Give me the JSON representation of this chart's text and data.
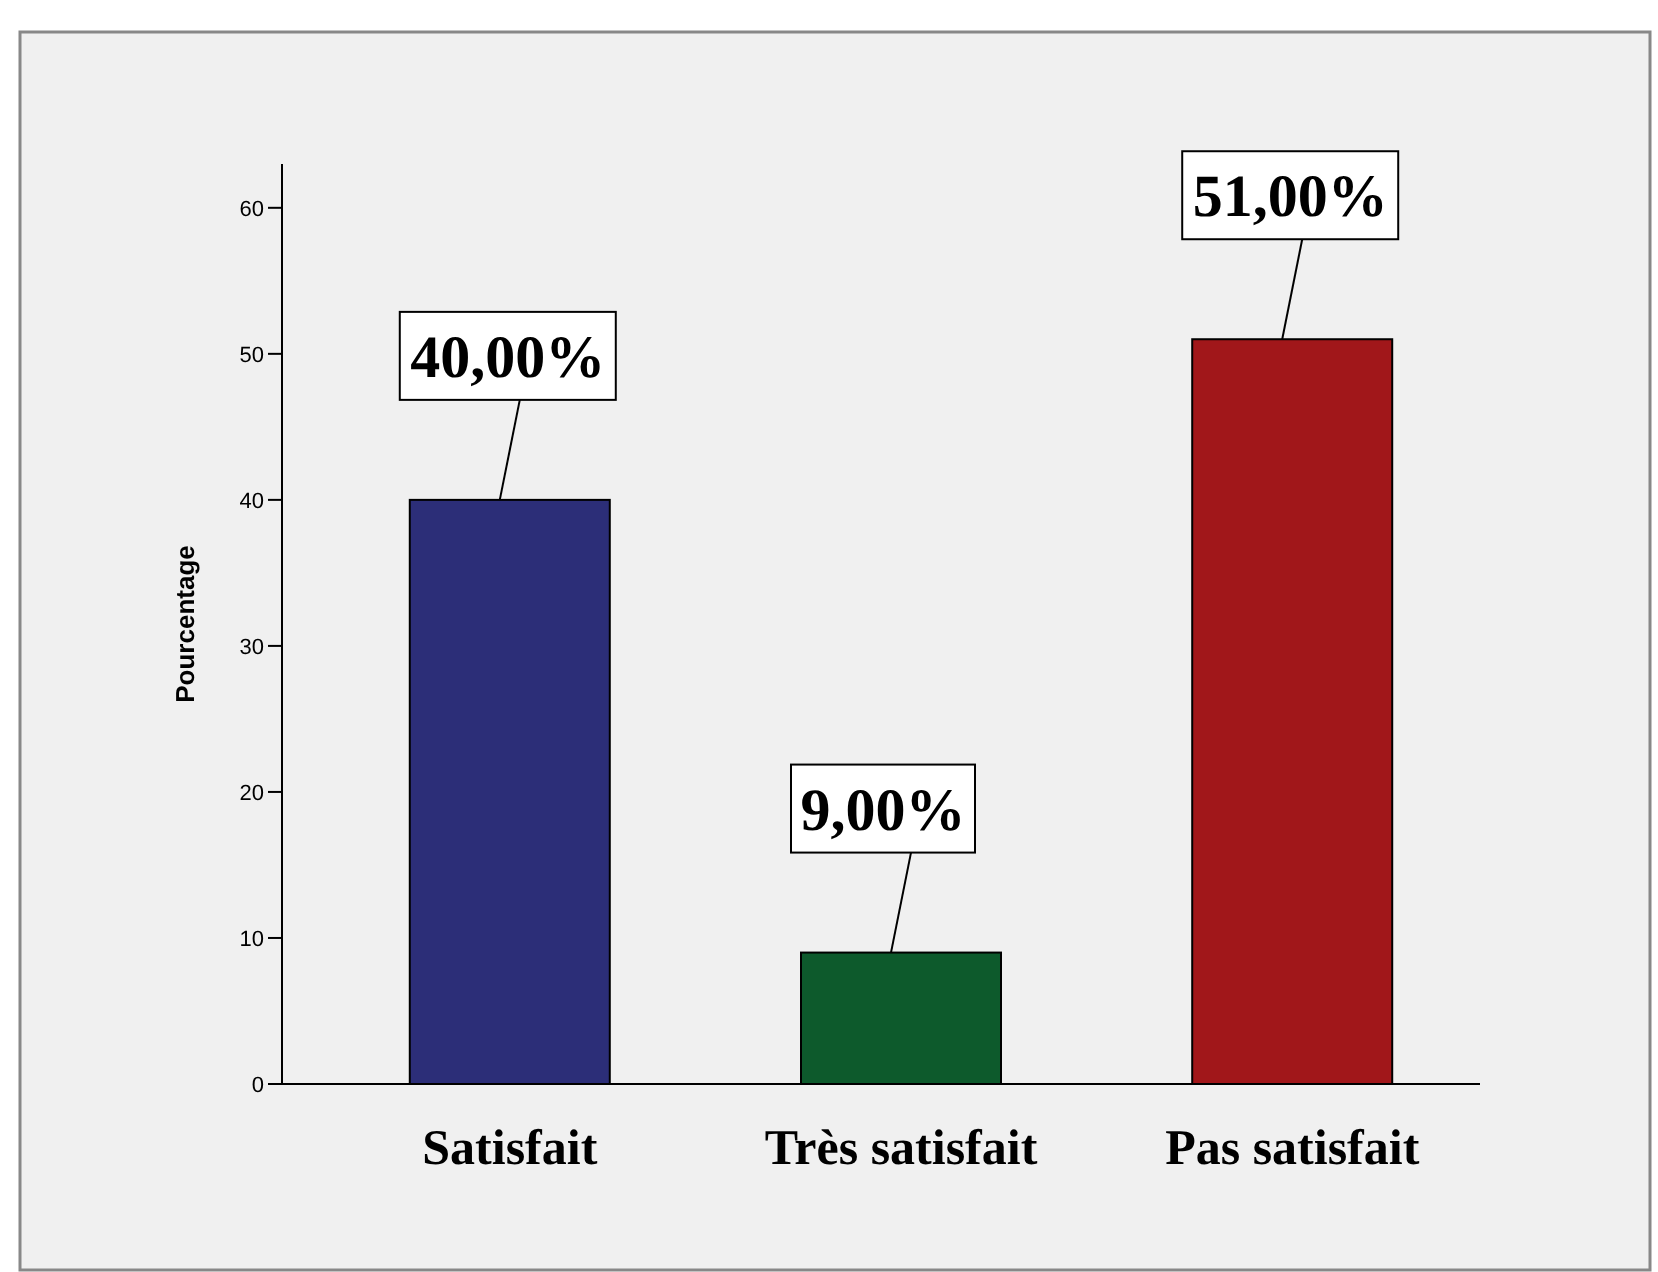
{
  "chart_data": {
    "type": "bar",
    "ylabel": "Pourcentage",
    "categories": [
      "Satisfait",
      "Très satisfait",
      "Pas satisfait"
    ],
    "values": [
      40,
      9,
      51
    ],
    "colors": [
      "#2c2e78",
      "#0d5a2c",
      "#a1171a"
    ],
    "value_labels": [
      "40,00%",
      "9,00%",
      "51,00%"
    ],
    "ylim": [
      0,
      63
    ],
    "yticks": [
      0,
      10,
      20,
      30,
      40,
      50,
      60
    ],
    "grid": false
  }
}
